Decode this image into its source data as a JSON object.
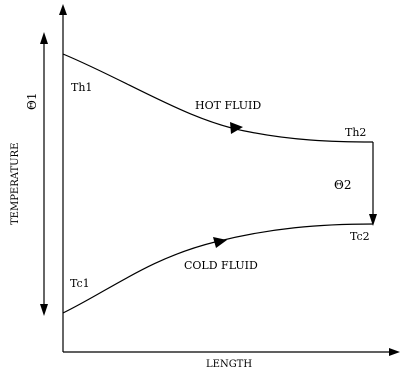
{
  "diagram": {
    "labels": {
      "th1": "Th1",
      "th2": "Th2",
      "tc1": "Tc1",
      "tc2": "Tc2",
      "hot_fluid": "HOT FLUID",
      "cold_fluid": "COLD FLUID",
      "theta1": "Θ1",
      "theta2": "Θ2",
      "x_axis": "LENGTH",
      "y_axis": "TEMPERATURE"
    },
    "colors": {
      "line": "#000000",
      "background": "#ffffff"
    }
  }
}
